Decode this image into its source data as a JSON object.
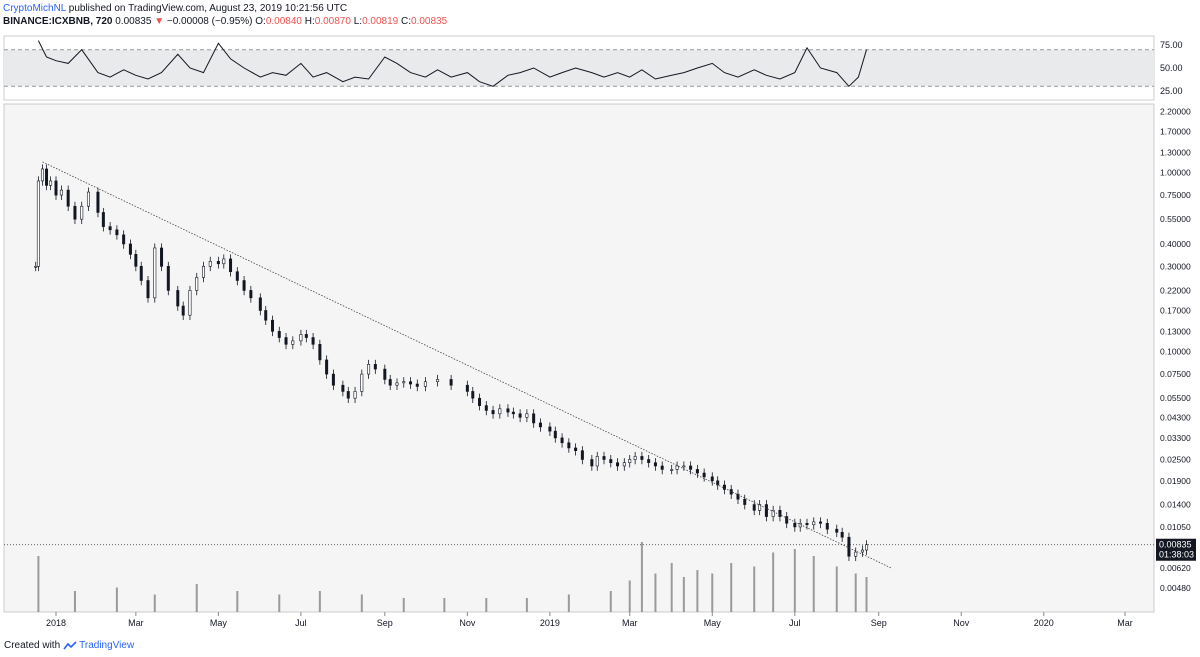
{
  "header": {
    "author": "CryptoMichNL",
    "published": "published on TradingView.com, August 23, 2019 10:21:56 UTC",
    "symbol": "BINANCE:ICXBNB, 720",
    "last": "0.00835",
    "change_arrow": "▼",
    "change": "−0.00008 (−0.95%)",
    "open_label": "O:",
    "open": "0.00840",
    "high_label": "H:",
    "high": "0.00870",
    "low_label": "L:",
    "low": "0.00819",
    "close_label": "C:",
    "close": "0.00835"
  },
  "footer": {
    "created_with": "Created with",
    "brand": "TradingView",
    "brand_icon": "tradingview-logo-icon"
  },
  "colors": {
    "candle": "#131722",
    "trendline": "#444444",
    "rsi_band": "#e9eaec",
    "volume": "#9a9a9a",
    "price_label_bg": "#131722",
    "chart_bg": "#f5f5f5"
  },
  "chart_data": [
    {
      "type": "line",
      "indicator": "RSI",
      "y_ticks": [
        "75.00",
        "50.00",
        "25.00"
      ],
      "ylim": [
        15,
        85
      ],
      "band": [
        30,
        70
      ],
      "x": [
        "2017-12-19",
        "2017-12-25",
        "2018-01-01",
        "2018-01-10",
        "2018-01-20",
        "2018-02-01",
        "2018-02-10",
        "2018-02-20",
        "2018-03-01",
        "2018-03-10",
        "2018-03-20",
        "2018-04-01",
        "2018-04-10",
        "2018-04-20",
        "2018-05-01",
        "2018-05-10",
        "2018-05-20",
        "2018-06-01",
        "2018-06-10",
        "2018-06-20",
        "2018-07-01",
        "2018-07-10",
        "2018-07-20",
        "2018-08-01",
        "2018-08-10",
        "2018-08-20",
        "2018-09-01",
        "2018-09-10",
        "2018-09-20",
        "2018-10-01",
        "2018-10-10",
        "2018-10-20",
        "2018-11-01",
        "2018-11-10",
        "2018-11-20",
        "2018-12-01",
        "2018-12-10",
        "2018-12-20",
        "2019-01-01",
        "2019-01-10",
        "2019-01-20",
        "2019-02-01",
        "2019-02-10",
        "2019-02-20",
        "2019-03-01",
        "2019-03-10",
        "2019-03-20",
        "2019-04-01",
        "2019-04-10",
        "2019-04-20",
        "2019-05-01",
        "2019-05-10",
        "2019-05-20",
        "2019-06-01",
        "2019-06-10",
        "2019-06-20",
        "2019-07-01",
        "2019-07-10",
        "2019-07-20",
        "2019-08-01",
        "2019-08-10",
        "2019-08-17",
        "2019-08-23"
      ],
      "values": [
        80,
        62,
        58,
        55,
        70,
        45,
        40,
        48,
        42,
        38,
        45,
        65,
        50,
        45,
        77,
        60,
        50,
        40,
        45,
        42,
        55,
        40,
        45,
        35,
        40,
        38,
        62,
        55,
        45,
        40,
        48,
        40,
        45,
        35,
        30,
        42,
        45,
        50,
        40,
        45,
        50,
        45,
        40,
        45,
        40,
        48,
        38,
        42,
        45,
        50,
        55,
        45,
        40,
        48,
        42,
        38,
        45,
        72,
        50,
        45,
        30,
        40,
        70
      ]
    },
    {
      "type": "line",
      "series_style": "candlestick",
      "x_ticks": [
        "2018",
        "Mar",
        "May",
        "Jul",
        "Sep",
        "Nov",
        "2019",
        "Mar",
        "May",
        "Jul",
        "Sep",
        "Nov",
        "2020",
        "Mar"
      ],
      "y_ticks": [
        "2.20000",
        "1.70000",
        "1.30000",
        "1.00000",
        "0.75000",
        "0.55000",
        "0.40000",
        "0.30000",
        "0.22000",
        "0.17000",
        "0.13000",
        "0.10000",
        "0.07500",
        "0.05500",
        "0.04300",
        "0.03300",
        "0.02500",
        "0.01900",
        "0.01400",
        "0.01050",
        "0.00835",
        "0.00620",
        "0.00480"
      ],
      "y_scale": "log",
      "ylim": [
        0.0037,
        2.3
      ],
      "x": [
        "2017-12-17",
        "2017-12-19",
        "2017-12-22",
        "2017-12-25",
        "2017-12-28",
        "2018-01-01",
        "2018-01-05",
        "2018-01-10",
        "2018-01-15",
        "2018-01-20",
        "2018-01-25",
        "2018-02-01",
        "2018-02-05",
        "2018-02-10",
        "2018-02-15",
        "2018-02-20",
        "2018-02-25",
        "2018-03-01",
        "2018-03-05",
        "2018-03-10",
        "2018-03-15",
        "2018-03-20",
        "2018-03-25",
        "2018-04-01",
        "2018-04-05",
        "2018-04-10",
        "2018-04-15",
        "2018-04-20",
        "2018-04-25",
        "2018-05-01",
        "2018-05-05",
        "2018-05-10",
        "2018-05-15",
        "2018-05-20",
        "2018-05-25",
        "2018-06-01",
        "2018-06-05",
        "2018-06-10",
        "2018-06-15",
        "2018-06-20",
        "2018-06-25",
        "2018-07-01",
        "2018-07-05",
        "2018-07-10",
        "2018-07-15",
        "2018-07-20",
        "2018-07-25",
        "2018-08-01",
        "2018-08-05",
        "2018-08-10",
        "2018-08-15",
        "2018-08-20",
        "2018-08-25",
        "2018-09-01",
        "2018-09-05",
        "2018-09-10",
        "2018-09-15",
        "2018-09-20",
        "2018-09-25",
        "2018-10-01",
        "2018-10-10",
        "2018-10-20",
        "2018-11-01",
        "2018-11-05",
        "2018-11-10",
        "2018-11-15",
        "2018-11-20",
        "2018-11-25",
        "2018-12-01",
        "2018-12-05",
        "2018-12-10",
        "2018-12-15",
        "2018-12-20",
        "2018-12-25",
        "2019-01-01",
        "2019-01-05",
        "2019-01-10",
        "2019-01-15",
        "2019-01-20",
        "2019-01-25",
        "2019-02-01",
        "2019-02-05",
        "2019-02-10",
        "2019-02-15",
        "2019-02-20",
        "2019-02-25",
        "2019-03-01",
        "2019-03-05",
        "2019-03-10",
        "2019-03-15",
        "2019-03-20",
        "2019-03-25",
        "2019-04-01",
        "2019-04-05",
        "2019-04-10",
        "2019-04-15",
        "2019-04-20",
        "2019-04-25",
        "2019-05-01",
        "2019-05-05",
        "2019-05-10",
        "2019-05-15",
        "2019-05-20",
        "2019-05-25",
        "2019-06-01",
        "2019-06-05",
        "2019-06-10",
        "2019-06-15",
        "2019-06-20",
        "2019-06-25",
        "2019-07-01",
        "2019-07-05",
        "2019-07-10",
        "2019-07-15",
        "2019-07-20",
        "2019-07-25",
        "2019-08-01",
        "2019-08-05",
        "2019-08-10",
        "2019-08-15",
        "2019-08-20",
        "2019-08-23"
      ],
      "values": [
        0.3,
        0.9,
        1.05,
        0.85,
        0.9,
        0.75,
        0.8,
        0.65,
        0.55,
        0.65,
        0.78,
        0.6,
        0.5,
        0.48,
        0.45,
        0.4,
        0.35,
        0.3,
        0.25,
        0.2,
        0.38,
        0.3,
        0.22,
        0.18,
        0.16,
        0.22,
        0.26,
        0.3,
        0.32,
        0.31,
        0.33,
        0.28,
        0.25,
        0.22,
        0.2,
        0.17,
        0.15,
        0.13,
        0.12,
        0.11,
        0.115,
        0.125,
        0.12,
        0.11,
        0.09,
        0.075,
        0.065,
        0.06,
        0.055,
        0.06,
        0.075,
        0.085,
        0.08,
        0.07,
        0.065,
        0.067,
        0.068,
        0.066,
        0.064,
        0.068,
        0.07,
        0.065,
        0.06,
        0.055,
        0.05,
        0.047,
        0.045,
        0.048,
        0.046,
        0.045,
        0.043,
        0.045,
        0.04,
        0.038,
        0.036,
        0.033,
        0.031,
        0.029,
        0.028,
        0.025,
        0.023,
        0.026,
        0.025,
        0.024,
        0.023,
        0.024,
        0.025,
        0.026,
        0.025,
        0.024,
        0.023,
        0.022,
        0.022,
        0.023,
        0.023,
        0.022,
        0.021,
        0.02,
        0.019,
        0.018,
        0.017,
        0.016,
        0.015,
        0.014,
        0.013,
        0.014,
        0.012,
        0.013,
        0.012,
        0.011,
        0.0105,
        0.011,
        0.0108,
        0.0112,
        0.011,
        0.0102,
        0.0098,
        0.0092,
        0.0072,
        0.0076,
        0.0078,
        0.00835
      ],
      "trendline": {
        "x": [
          "2017-12-22",
          "2019-09-10"
        ],
        "values": [
          1.15,
          0.0062
        ]
      },
      "current_price": "0.00835",
      "countdown": "01:38:03"
    },
    {
      "type": "bar",
      "indicator": "Volume",
      "note": "volume histogram drawn along the bottom of the price pane; relative heights only",
      "x": [
        "2017-12-19",
        "2018-01-15",
        "2018-02-15",
        "2018-03-15",
        "2018-04-15",
        "2018-05-15",
        "2018-06-15",
        "2018-07-15",
        "2018-08-15",
        "2018-09-15",
        "2018-10-15",
        "2018-11-15",
        "2018-12-15",
        "2019-01-15",
        "2019-02-15",
        "2019-03-01",
        "2019-03-10",
        "2019-03-20",
        "2019-04-01",
        "2019-04-10",
        "2019-04-20",
        "2019-05-01",
        "2019-05-15",
        "2019-06-01",
        "2019-06-15",
        "2019-07-01",
        "2019-07-15",
        "2019-08-01",
        "2019-08-15",
        "2019-08-23"
      ],
      "values": [
        0.8,
        0.3,
        0.35,
        0.25,
        0.4,
        0.3,
        0.25,
        0.3,
        0.25,
        0.2,
        0.2,
        0.2,
        0.2,
        0.25,
        0.3,
        0.45,
        1.0,
        0.55,
        0.7,
        0.5,
        0.6,
        0.55,
        0.7,
        0.65,
        0.85,
        0.9,
        0.8,
        0.65,
        0.55,
        0.5
      ]
    }
  ]
}
